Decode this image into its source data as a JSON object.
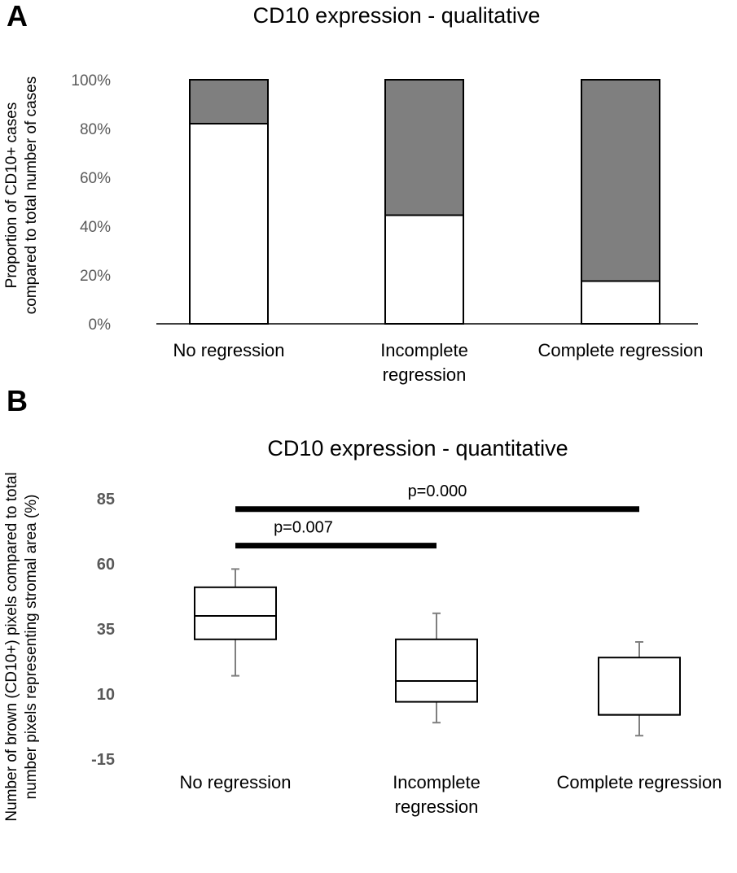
{
  "chart_data": [
    {
      "panel": "A",
      "type": "bar",
      "stacked": true,
      "title": "CD10 expression - qualitative",
      "ylabel": [
        "Proportion of CD10+ cases",
        "compared to total number of cases"
      ],
      "xlabel": "",
      "ylim": [
        0,
        100
      ],
      "yticks": [
        "0%",
        "20%",
        "40%",
        "60%",
        "80%",
        "100%"
      ],
      "grid": false,
      "legend": "none",
      "categories": [
        [
          "No regression"
        ],
        [
          "Incomplete",
          "regression"
        ],
        [
          "Complete regression"
        ]
      ],
      "series": [
        {
          "color": "#ffffff",
          "values": [
            82,
            44.5,
            17.5
          ]
        },
        {
          "color": "#7f7f7f",
          "values": [
            18,
            55.5,
            82.5
          ]
        }
      ]
    },
    {
      "panel": "B",
      "type": "box",
      "title": "CD10 expression - quantitative",
      "ylabel": [
        "Number of brown (CD10+) pixels compared to total",
        "number pixels representing stromal area (%)"
      ],
      "xlabel": "",
      "ylim": [
        -15,
        85
      ],
      "yticks": [
        "-15",
        "10",
        "35",
        "60",
        "85"
      ],
      "grid": false,
      "legend": "none",
      "categories": [
        [
          "No regression"
        ],
        [
          "Incomplete",
          "regression"
        ],
        [
          "Complete regression"
        ]
      ],
      "boxes": [
        {
          "min": 17,
          "q1": 31,
          "median": 40,
          "q3": 51,
          "max": 58
        },
        {
          "min": -1,
          "q1": 7,
          "median": 15,
          "q3": 31,
          "max": 41
        },
        {
          "min": -6,
          "q1": 2,
          "median": 2,
          "q3": 24,
          "max": 30
        }
      ],
      "brackets": [
        {
          "from": 0,
          "to": 2,
          "label": "p=0.000",
          "y": 81
        },
        {
          "from": 0,
          "to": 1,
          "label": "p=0.007",
          "y": 67
        }
      ]
    }
  ]
}
